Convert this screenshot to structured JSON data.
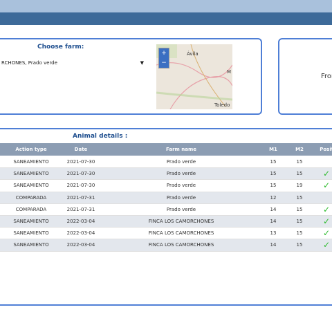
{
  "farm_selector": {
    "label": "Choose farm:",
    "value": "RCHONES, Prado verde"
  },
  "map": {
    "zoom_in": "+",
    "zoom_out": "−",
    "places": [
      "Ávila",
      "M",
      "Toledo"
    ]
  },
  "date_panel": {
    "label": "From"
  },
  "table": {
    "title": "Animal details :",
    "columns": [
      "Action type",
      "Date",
      "Farm name",
      "M1",
      "M2",
      "Positive"
    ],
    "rows": [
      [
        "SANEAMIENTO",
        "2021-07-30",
        "Prado verde",
        "15",
        "15",
        false
      ],
      [
        "SANEAMIENTO",
        "2021-07-30",
        "Prado verde",
        "15",
        "15",
        true
      ],
      [
        "SANEAMIENTO",
        "2021-07-30",
        "Prado verde",
        "15",
        "19",
        true
      ],
      [
        "COMPARADA",
        "2021-07-31",
        "Prado verde",
        "12",
        "15",
        false
      ],
      [
        "COMPARADA",
        "2021-07-31",
        "Prado verde",
        "14",
        "15",
        true
      ],
      [
        "SANEAMIENTO",
        "2022-03-04",
        "FINCA LOS CAMORCHONES",
        "14",
        "15",
        true
      ],
      [
        "SANEAMIENTO",
        "2022-03-04",
        "FINCA LOS CAMORCHONES",
        "13",
        "15",
        true
      ],
      [
        "SANEAMIENTO",
        "2022-03-04",
        "FINCA LOS CAMORCHONES",
        "14",
        "15",
        true
      ]
    ]
  }
}
